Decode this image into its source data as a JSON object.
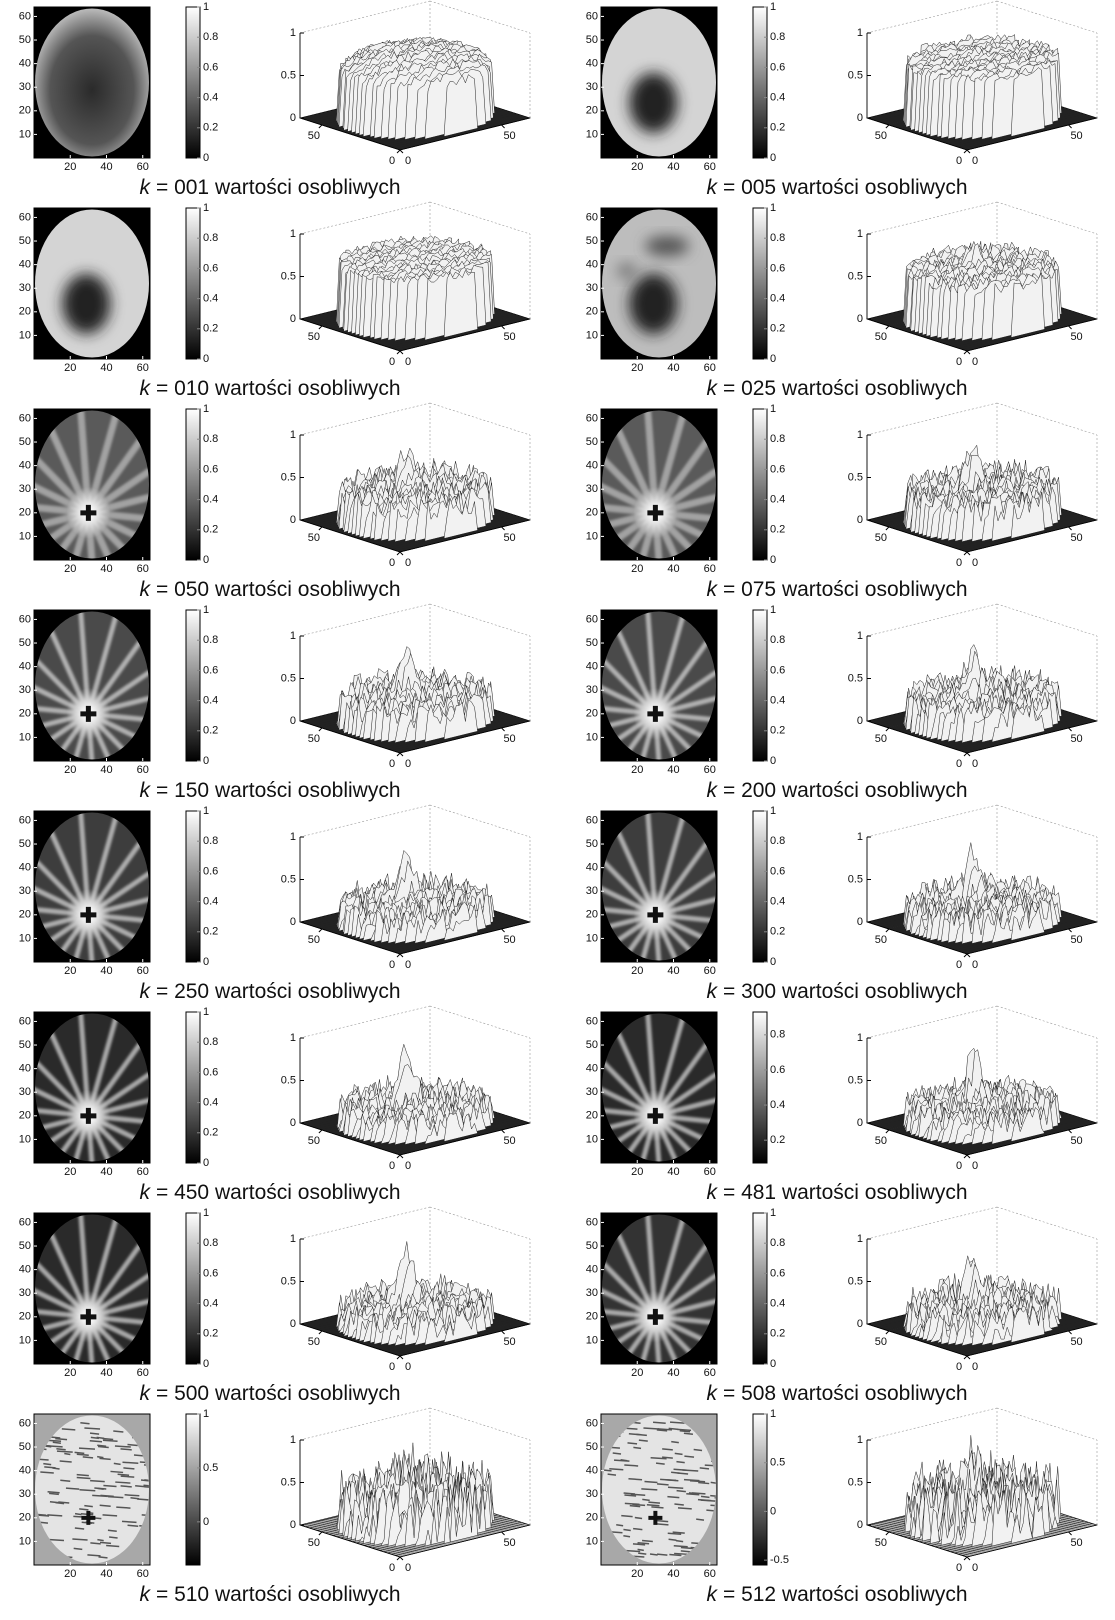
{
  "figure": {
    "variable": "k",
    "image_axes": {
      "xlim": [
        0,
        64
      ],
      "ylim": [
        0,
        64
      ],
      "xticks": [
        20,
        40,
        60
      ],
      "yticks": [
        10,
        20,
        30,
        40,
        50,
        60
      ]
    },
    "surface_axes": {
      "zlim": [
        0,
        1
      ],
      "zticks": [
        0,
        0.5,
        1
      ],
      "xticks": [
        0,
        50
      ],
      "yticks": [
        0,
        50
      ]
    },
    "panels": [
      {
        "caption": "= 001 wartości osobliwych",
        "colorbar": {
          "lim": [
            0,
            1
          ],
          "ticks": [
            0,
            0.2,
            0.4,
            0.6,
            0.8,
            1
          ]
        }
      },
      {
        "caption": "= 005 wartości osobliwych",
        "colorbar": {
          "lim": [
            0,
            1
          ],
          "ticks": [
            0,
            0.2,
            0.4,
            0.6,
            0.8,
            1
          ]
        }
      },
      {
        "caption": "= 010 wartości osobliwych",
        "colorbar": {
          "lim": [
            0,
            1
          ],
          "ticks": [
            0,
            0.2,
            0.4,
            0.6,
            0.8,
            1
          ]
        }
      },
      {
        "caption": "= 025 wartości osobliwych",
        "colorbar": {
          "lim": [
            0,
            1
          ],
          "ticks": [
            0,
            0.2,
            0.4,
            0.6,
            0.8,
            1
          ]
        }
      },
      {
        "caption": "= 050 wartości osobliwych",
        "colorbar": {
          "lim": [
            0,
            1
          ],
          "ticks": [
            0,
            0.2,
            0.4,
            0.6,
            0.8,
            1
          ]
        }
      },
      {
        "caption": "= 075 wartości osobliwych",
        "colorbar": {
          "lim": [
            0,
            1
          ],
          "ticks": [
            0,
            0.2,
            0.4,
            0.6,
            0.8,
            1
          ]
        }
      },
      {
        "caption": "= 150 wartości osobliwych",
        "colorbar": {
          "lim": [
            0,
            1
          ],
          "ticks": [
            0,
            0.2,
            0.4,
            0.6,
            0.8,
            1
          ]
        }
      },
      {
        "caption": "= 200 wartości osobliwych",
        "colorbar": {
          "lim": [
            0,
            1
          ],
          "ticks": [
            0,
            0.2,
            0.4,
            0.6,
            0.8,
            1
          ]
        }
      },
      {
        "caption": "= 250 wartości osobliwych",
        "colorbar": {
          "lim": [
            0,
            1
          ],
          "ticks": [
            0,
            0.2,
            0.4,
            0.6,
            0.8,
            1
          ]
        }
      },
      {
        "caption": "= 300 wartości osobliwych",
        "colorbar": {
          "lim": [
            0,
            1
          ],
          "ticks": [
            0,
            0.2,
            0.4,
            0.6,
            0.8,
            1
          ]
        }
      },
      {
        "caption": "= 450 wartości osobliwych",
        "colorbar": {
          "lim": [
            0,
            1
          ],
          "ticks": [
            0,
            0.2,
            0.4,
            0.6,
            0.8,
            1
          ]
        }
      },
      {
        "caption": "= 481 wartości osobliwych",
        "colorbar": {
          "lim": [
            0.07,
            0.93
          ],
          "ticks": [
            0.2,
            0.4,
            0.6,
            0.8
          ]
        }
      },
      {
        "caption": "= 500 wartości osobliwych",
        "colorbar": {
          "lim": [
            0,
            1
          ],
          "ticks": [
            0,
            0.2,
            0.4,
            0.6,
            0.8,
            1
          ]
        }
      },
      {
        "caption": "= 508 wartości osobliwych",
        "colorbar": {
          "lim": [
            0,
            1
          ],
          "ticks": [
            0,
            0.2,
            0.4,
            0.6,
            0.8,
            1
          ]
        }
      },
      {
        "caption": "= 510 wartości osobliwych",
        "colorbar": {
          "lim": [
            -0.4,
            1
          ],
          "ticks": [
            0,
            0.5,
            1
          ]
        }
      },
      {
        "caption": "= 512 wartości osobliwych",
        "colorbar": {
          "lim": [
            -0.55,
            1
          ],
          "ticks": [
            -0.5,
            0,
            0.5,
            1
          ]
        }
      }
    ]
  }
}
